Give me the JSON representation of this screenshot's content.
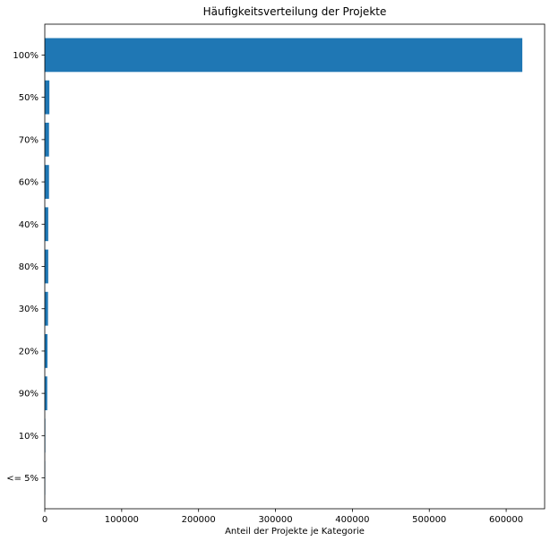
{
  "chart_data": {
    "type": "bar",
    "orientation": "horizontal",
    "title": "Häufigkeitsverteilung der Projekte",
    "xlabel": "Anteil der Projekte je Kategorie",
    "ylabel": "",
    "categories": [
      "100%",
      "50%",
      "70%",
      "60%",
      "40%",
      "80%",
      "30%",
      "20%",
      "90%",
      "10%",
      "<= 5%"
    ],
    "values": [
      621000,
      6000,
      5500,
      5500,
      4500,
      4500,
      4200,
      3500,
      3200,
      700,
      400
    ],
    "xlim": [
      0,
      650000
    ],
    "xticks": [
      0,
      100000,
      200000,
      300000,
      400000,
      500000,
      600000
    ],
    "xtick_labels": [
      "0",
      "100000",
      "200000",
      "300000",
      "400000",
      "500000",
      "600000"
    ],
    "bar_color": "#1f77b4",
    "grid": false,
    "legend": "none"
  }
}
